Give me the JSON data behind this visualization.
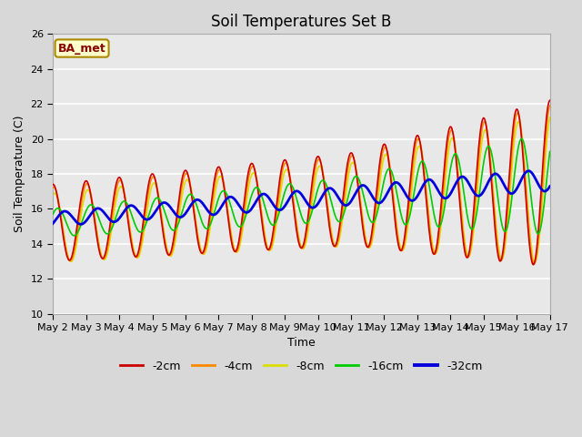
{
  "title": "Soil Temperatures Set B",
  "xlabel": "Time",
  "ylabel": "Soil Temperature (C)",
  "ylim": [
    10,
    26
  ],
  "xtick_labels": [
    "May 2",
    "May 3",
    "May 4",
    "May 5",
    "May 6",
    "May 7",
    "May 8",
    "May 9",
    "May 10",
    "May 11",
    "May 12",
    "May 13",
    "May 14",
    "May 15",
    "May 16",
    "May 17"
  ],
  "series_colors": {
    "-2cm": "#cc0000",
    "-4cm": "#ff8800",
    "-8cm": "#dddd00",
    "-16cm": "#00cc00",
    "-32cm": "#0000dd"
  },
  "legend_order": [
    "-2cm",
    "-4cm",
    "-8cm",
    "-16cm",
    "-32cm"
  ],
  "fig_bg_color": "#d8d8d8",
  "plot_bg_color": "#e8e8e8",
  "title_fontsize": 12,
  "axis_fontsize": 8,
  "label_fontsize": 9,
  "annotation_text": "BA_met",
  "annotation_bg": "#ffffcc",
  "annotation_border": "#aa8800",
  "annotation_text_color": "#880000",
  "line_width": 1.2
}
